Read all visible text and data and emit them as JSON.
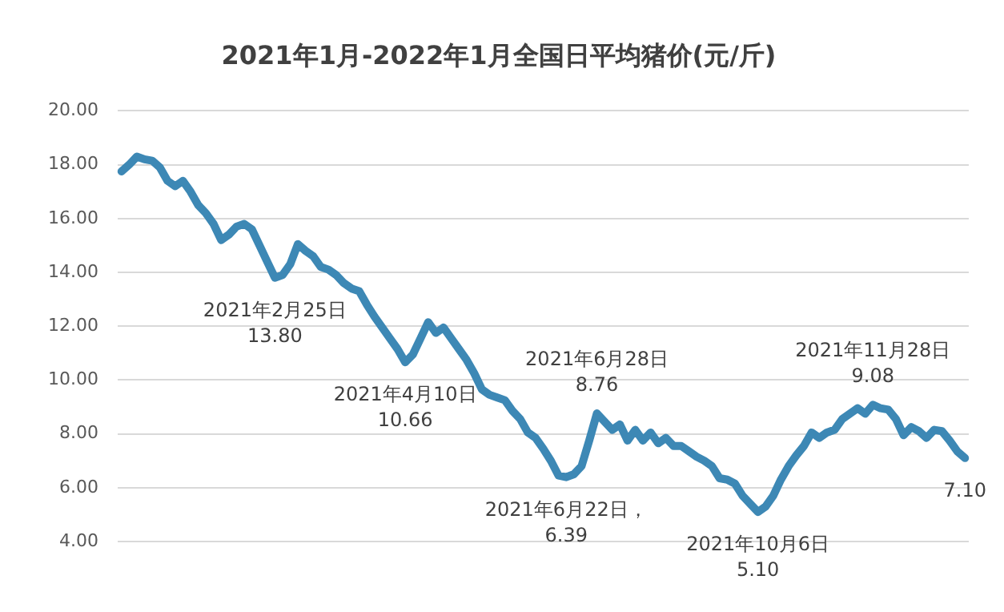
{
  "chart_data": {
    "type": "line",
    "title": "2021年1月-2022年1月全国日平均猪价(元/斤)",
    "categories": [
      null,
      null,
      null,
      null,
      null,
      null,
      null,
      null,
      null,
      null,
      null,
      null,
      null,
      null,
      null,
      null,
      null,
      null,
      null,
      null,
      null,
      null,
      null,
      null,
      null,
      null,
      null,
      null,
      null,
      null,
      null,
      null,
      null,
      null,
      null,
      null,
      null,
      null,
      null,
      null,
      null,
      null,
      null,
      null,
      null,
      null,
      null,
      null,
      null,
      null,
      null,
      null,
      null,
      null,
      null,
      null,
      null,
      null,
      null,
      null,
      null,
      null,
      null,
      null,
      null,
      null,
      null,
      null,
      null,
      null,
      null,
      null,
      null,
      null,
      null,
      null,
      null,
      null,
      null,
      null,
      null,
      null,
      null,
      null,
      null,
      null,
      null,
      null,
      null,
      null,
      null,
      null,
      null,
      null,
      null,
      null,
      null,
      null,
      null,
      null,
      null,
      null,
      null,
      null,
      null,
      null,
      null,
      null,
      null,
      null,
      null
    ],
    "series": [
      {
        "color": "#3d88b5",
        "values": [
          17.75,
          18.0,
          18.3,
          18.2,
          18.15,
          17.9,
          17.4,
          17.2,
          17.4,
          17.0,
          16.5,
          16.2,
          15.8,
          15.2,
          15.4,
          15.7,
          15.8,
          15.6,
          15.0,
          14.4,
          13.8,
          13.9,
          14.3,
          15.05,
          14.8,
          14.6,
          14.2,
          14.1,
          13.9,
          13.6,
          13.4,
          13.3,
          12.8,
          12.35,
          11.95,
          11.55,
          11.15,
          10.66,
          10.95,
          11.55,
          12.15,
          11.75,
          11.95,
          11.55,
          11.15,
          10.75,
          10.25,
          9.65,
          9.45,
          9.35,
          9.25,
          8.85,
          8.55,
          8.05,
          7.85,
          7.45,
          7.0,
          6.45,
          6.39,
          6.5,
          6.8,
          7.75,
          8.76,
          8.45,
          8.15,
          8.35,
          7.75,
          8.15,
          7.75,
          8.05,
          7.65,
          7.85,
          7.55,
          7.55,
          7.35,
          7.15,
          7.0,
          6.8,
          6.35,
          6.3,
          6.15,
          5.7,
          5.4,
          5.1,
          5.3,
          5.7,
          6.3,
          6.8,
          7.2,
          7.55,
          8.05,
          7.85,
          8.05,
          8.15,
          8.55,
          8.75,
          8.95,
          8.75,
          9.08,
          8.95,
          8.9,
          8.55,
          7.95,
          8.25,
          8.1,
          7.85,
          8.15,
          8.1,
          7.75,
          7.35,
          7.1
        ],
        "value_labels": [
          null,
          null,
          null,
          null,
          null,
          null,
          null,
          null,
          null,
          null,
          null,
          null,
          null,
          null,
          null,
          null,
          null,
          null,
          null,
          null,
          "2021年2月25日\n13.80",
          null,
          null,
          null,
          null,
          null,
          null,
          null,
          null,
          null,
          null,
          null,
          null,
          null,
          null,
          null,
          null,
          "2021年4月10日\n10.66",
          null,
          null,
          null,
          null,
          null,
          null,
          null,
          null,
          null,
          null,
          null,
          null,
          null,
          null,
          null,
          null,
          null,
          null,
          null,
          null,
          "2021年6月22日，\n6.39",
          null,
          null,
          null,
          "2021年6月28日\n8.76",
          null,
          null,
          null,
          null,
          null,
          null,
          null,
          null,
          null,
          null,
          null,
          null,
          null,
          null,
          null,
          null,
          null,
          null,
          null,
          null,
          "2021年10月6日\n5.10",
          null,
          null,
          null,
          null,
          null,
          null,
          null,
          null,
          null,
          null,
          null,
          null,
          null,
          null,
          "2021年11月28日\n9.08",
          null,
          null,
          null,
          null,
          null,
          null,
          null,
          null,
          null,
          null,
          null,
          "7.10"
        ]
      }
    ],
    "ylim": [
      4,
      20
    ],
    "yticks": [
      {
        "value": 4,
        "label": "4.00"
      },
      {
        "value": 6,
        "label": "6.00"
      },
      {
        "value": 8,
        "label": "8.00"
      },
      {
        "value": 10,
        "label": "10.00"
      },
      {
        "value": 12,
        "label": "12.00"
      },
      {
        "value": 14,
        "label": "14.00"
      },
      {
        "value": 16,
        "label": "16.00"
      },
      {
        "value": 18,
        "label": "18.00"
      },
      {
        "value": 20,
        "label": "20.00"
      }
    ],
    "tick_labels": "y",
    "grid": "y",
    "marker": "none"
  }
}
